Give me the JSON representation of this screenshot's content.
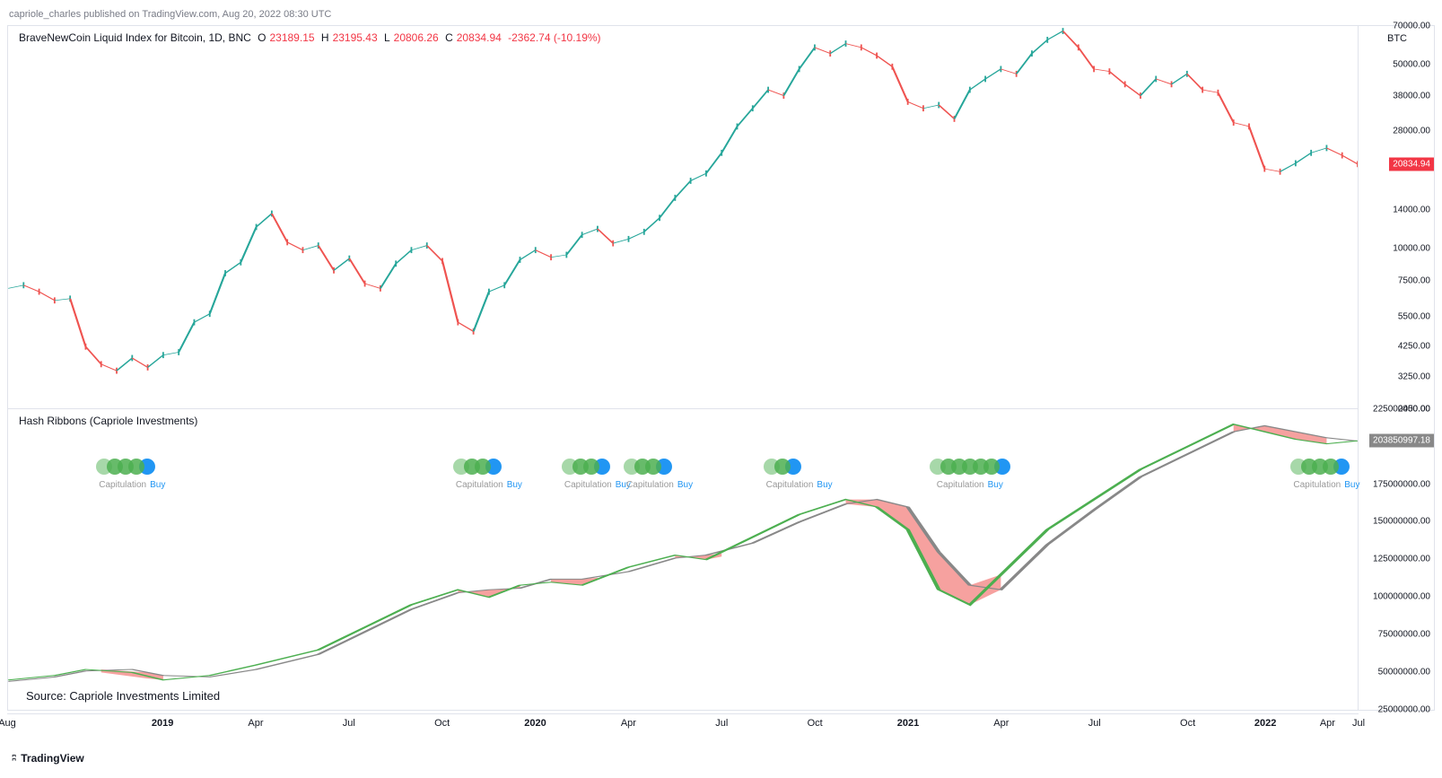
{
  "header": {
    "publish_note": "capriole_charles published on TradingView.com, Aug 20, 2022 08:30 UTC"
  },
  "top_chart": {
    "title_prefix": "BraveNewCoin Liquid Index for Bitcoin, 1D, BNC",
    "ohlc": {
      "O_label": "O",
      "O": "23189.15",
      "H_label": "H",
      "H": "23195.43",
      "L_label": "L",
      "L": "20806.26",
      "C_label": "C",
      "C": "20834.94",
      "change": "-2362.74 (-10.19%)"
    },
    "currency_label": "BTC",
    "scale": "log",
    "ylim": [
      2450,
      70000
    ],
    "yticks": [
      {
        "v": 70000,
        "label": "70000.00"
      },
      {
        "v": 50000,
        "label": "50000.00"
      },
      {
        "v": 38000,
        "label": "38000.00"
      },
      {
        "v": 28000,
        "label": "28000.00"
      },
      {
        "v": 20834.94,
        "label": "20834.94",
        "badge": true,
        "badge_color": "#f23645"
      },
      {
        "v": 14000,
        "label": "14000.00"
      },
      {
        "v": 10000,
        "label": "10000.00"
      },
      {
        "v": 7500,
        "label": "7500.00"
      },
      {
        "v": 5500,
        "label": "5500.00"
      },
      {
        "v": 4250,
        "label": "4250.00"
      },
      {
        "v": 3250,
        "label": "3250.00"
      },
      {
        "v": 2450,
        "label": "2450.00"
      }
    ],
    "price_series": [
      {
        "x": 0,
        "y": 7000
      },
      {
        "x": 1,
        "y": 7200
      },
      {
        "x": 2,
        "y": 6800
      },
      {
        "x": 3,
        "y": 6300
      },
      {
        "x": 4,
        "y": 6400
      },
      {
        "x": 5,
        "y": 4200
      },
      {
        "x": 6,
        "y": 3600
      },
      {
        "x": 7,
        "y": 3400
      },
      {
        "x": 8,
        "y": 3800
      },
      {
        "x": 9,
        "y": 3500
      },
      {
        "x": 10,
        "y": 3900
      },
      {
        "x": 11,
        "y": 4000
      },
      {
        "x": 12,
        "y": 5200
      },
      {
        "x": 13,
        "y": 5600
      },
      {
        "x": 14,
        "y": 8000
      },
      {
        "x": 15,
        "y": 8800
      },
      {
        "x": 16,
        "y": 12000
      },
      {
        "x": 17,
        "y": 13500
      },
      {
        "x": 18,
        "y": 10500
      },
      {
        "x": 19,
        "y": 9800
      },
      {
        "x": 20,
        "y": 10200
      },
      {
        "x": 21,
        "y": 8200
      },
      {
        "x": 22,
        "y": 9100
      },
      {
        "x": 23,
        "y": 7300
      },
      {
        "x": 24,
        "y": 7000
      },
      {
        "x": 25,
        "y": 8700
      },
      {
        "x": 26,
        "y": 9800
      },
      {
        "x": 27,
        "y": 10200
      },
      {
        "x": 28,
        "y": 8900
      },
      {
        "x": 29,
        "y": 5200
      },
      {
        "x": 30,
        "y": 4800
      },
      {
        "x": 31,
        "y": 6800
      },
      {
        "x": 32,
        "y": 7200
      },
      {
        "x": 33,
        "y": 9000
      },
      {
        "x": 34,
        "y": 9800
      },
      {
        "x": 35,
        "y": 9200
      },
      {
        "x": 36,
        "y": 9400
      },
      {
        "x": 37,
        "y": 11200
      },
      {
        "x": 38,
        "y": 11800
      },
      {
        "x": 39,
        "y": 10400
      },
      {
        "x": 40,
        "y": 10800
      },
      {
        "x": 41,
        "y": 11500
      },
      {
        "x": 42,
        "y": 13000
      },
      {
        "x": 43,
        "y": 15500
      },
      {
        "x": 44,
        "y": 18000
      },
      {
        "x": 45,
        "y": 19200
      },
      {
        "x": 46,
        "y": 23000
      },
      {
        "x": 47,
        "y": 29000
      },
      {
        "x": 48,
        "y": 34000
      },
      {
        "x": 49,
        "y": 40000
      },
      {
        "x": 50,
        "y": 38000
      },
      {
        "x": 51,
        "y": 48000
      },
      {
        "x": 52,
        "y": 58000
      },
      {
        "x": 53,
        "y": 55000
      },
      {
        "x": 54,
        "y": 60000
      },
      {
        "x": 55,
        "y": 58000
      },
      {
        "x": 56,
        "y": 54000
      },
      {
        "x": 57,
        "y": 49000
      },
      {
        "x": 58,
        "y": 36000
      },
      {
        "x": 59,
        "y": 34000
      },
      {
        "x": 60,
        "y": 35000
      },
      {
        "x": 61,
        "y": 31000
      },
      {
        "x": 62,
        "y": 40000
      },
      {
        "x": 63,
        "y": 44000
      },
      {
        "x": 64,
        "y": 48000
      },
      {
        "x": 65,
        "y": 46000
      },
      {
        "x": 66,
        "y": 55000
      },
      {
        "x": 67,
        "y": 62000
      },
      {
        "x": 68,
        "y": 67000
      },
      {
        "x": 69,
        "y": 58000
      },
      {
        "x": 70,
        "y": 48000
      },
      {
        "x": 71,
        "y": 47000
      },
      {
        "x": 72,
        "y": 42000
      },
      {
        "x": 73,
        "y": 38000
      },
      {
        "x": 74,
        "y": 44000
      },
      {
        "x": 75,
        "y": 42000
      },
      {
        "x": 76,
        "y": 46000
      },
      {
        "x": 77,
        "y": 40000
      },
      {
        "x": 78,
        "y": 39000
      },
      {
        "x": 79,
        "y": 30000
      },
      {
        "x": 80,
        "y": 29000
      },
      {
        "x": 81,
        "y": 20000
      },
      {
        "x": 82,
        "y": 19500
      },
      {
        "x": 83,
        "y": 21000
      },
      {
        "x": 84,
        "y": 23000
      },
      {
        "x": 85,
        "y": 24000
      },
      {
        "x": 86,
        "y": 22500
      },
      {
        "x": 87,
        "y": 20834
      }
    ],
    "colors": {
      "up": "#26a69a",
      "down": "#ef5350",
      "line": "#555"
    }
  },
  "bottom_chart": {
    "title": "Hash Ribbons (Capriole Investments)",
    "source": "Source: Capriole Investments Limited",
    "ylim": [
      25000000,
      225000000
    ],
    "yticks": [
      {
        "v": 225000000,
        "label": "225000000.00"
      },
      {
        "v": 204057788,
        "label": "204057788.03",
        "badge": true,
        "badge_color": "#4caf50"
      },
      {
        "v": 203850997,
        "label": "203850997.18",
        "badge": true,
        "badge_color": "#888"
      },
      {
        "v": 175000000,
        "label": "175000000.00"
      },
      {
        "v": 150000000,
        "label": "150000000.00"
      },
      {
        "v": 125000000,
        "label": "125000000.00"
      },
      {
        "v": 100000000,
        "label": "100000000.00"
      },
      {
        "v": 75000000,
        "label": "75000000.00"
      },
      {
        "v": 50000000,
        "label": "50000000.00"
      },
      {
        "v": 25000000,
        "label": "25000000.00"
      }
    ],
    "line_green": [
      {
        "x": 0,
        "y": 45000000
      },
      {
        "x": 3,
        "y": 48000000
      },
      {
        "x": 5,
        "y": 52000000
      },
      {
        "x": 8,
        "y": 50000000
      },
      {
        "x": 10,
        "y": 45000000
      },
      {
        "x": 13,
        "y": 48000000
      },
      {
        "x": 16,
        "y": 55000000
      },
      {
        "x": 20,
        "y": 65000000
      },
      {
        "x": 23,
        "y": 80000000
      },
      {
        "x": 26,
        "y": 95000000
      },
      {
        "x": 29,
        "y": 105000000
      },
      {
        "x": 31,
        "y": 100000000
      },
      {
        "x": 33,
        "y": 108000000
      },
      {
        "x": 35,
        "y": 110000000
      },
      {
        "x": 37,
        "y": 108000000
      },
      {
        "x": 40,
        "y": 120000000
      },
      {
        "x": 43,
        "y": 128000000
      },
      {
        "x": 45,
        "y": 125000000
      },
      {
        "x": 48,
        "y": 140000000
      },
      {
        "x": 51,
        "y": 155000000
      },
      {
        "x": 54,
        "y": 165000000
      },
      {
        "x": 56,
        "y": 160000000
      },
      {
        "x": 58,
        "y": 145000000
      },
      {
        "x": 60,
        "y": 105000000
      },
      {
        "x": 62,
        "y": 95000000
      },
      {
        "x": 64,
        "y": 115000000
      },
      {
        "x": 67,
        "y": 145000000
      },
      {
        "x": 70,
        "y": 165000000
      },
      {
        "x": 73,
        "y": 185000000
      },
      {
        "x": 76,
        "y": 200000000
      },
      {
        "x": 79,
        "y": 215000000
      },
      {
        "x": 81,
        "y": 210000000
      },
      {
        "x": 83,
        "y": 205000000
      },
      {
        "x": 85,
        "y": 202000000
      },
      {
        "x": 87,
        "y": 204000000
      }
    ],
    "line_gray": [
      {
        "x": 0,
        "y": 44000000
      },
      {
        "x": 3,
        "y": 47000000
      },
      {
        "x": 5,
        "y": 51000000
      },
      {
        "x": 8,
        "y": 52000000
      },
      {
        "x": 10,
        "y": 48000000
      },
      {
        "x": 13,
        "y": 47000000
      },
      {
        "x": 16,
        "y": 52000000
      },
      {
        "x": 20,
        "y": 62000000
      },
      {
        "x": 23,
        "y": 77000000
      },
      {
        "x": 26,
        "y": 92000000
      },
      {
        "x": 29,
        "y": 103000000
      },
      {
        "x": 31,
        "y": 105000000
      },
      {
        "x": 33,
        "y": 106000000
      },
      {
        "x": 35,
        "y": 112000000
      },
      {
        "x": 37,
        "y": 112000000
      },
      {
        "x": 40,
        "y": 117000000
      },
      {
        "x": 43,
        "y": 126000000
      },
      {
        "x": 45,
        "y": 128000000
      },
      {
        "x": 48,
        "y": 136000000
      },
      {
        "x": 51,
        "y": 150000000
      },
      {
        "x": 54,
        "y": 162000000
      },
      {
        "x": 56,
        "y": 165000000
      },
      {
        "x": 58,
        "y": 160000000
      },
      {
        "x": 60,
        "y": 130000000
      },
      {
        "x": 62,
        "y": 108000000
      },
      {
        "x": 64,
        "y": 105000000
      },
      {
        "x": 67,
        "y": 135000000
      },
      {
        "x": 70,
        "y": 158000000
      },
      {
        "x": 73,
        "y": 180000000
      },
      {
        "x": 76,
        "y": 195000000
      },
      {
        "x": 79,
        "y": 210000000
      },
      {
        "x": 81,
        "y": 214000000
      },
      {
        "x": 83,
        "y": 210000000
      },
      {
        "x": 85,
        "y": 206000000
      },
      {
        "x": 87,
        "y": 203800000
      }
    ],
    "fill_red_regions": [
      [
        {
          "x": 6,
          "t": 52000000,
          "b": 50000000
        },
        {
          "x": 9,
          "t": 50000000,
          "b": 46000000
        },
        {
          "x": 10,
          "t": 48000000,
          "b": 45000000
        }
      ],
      [
        {
          "x": 29,
          "t": 103000000,
          "b": 105000000
        },
        {
          "x": 31,
          "t": 105000000,
          "b": 100000000
        },
        {
          "x": 33,
          "t": 106000000,
          "b": 108000000
        }
      ],
      [
        {
          "x": 35,
          "t": 112000000,
          "b": 110000000
        },
        {
          "x": 37,
          "t": 112000000,
          "b": 108000000
        },
        {
          "x": 38,
          "t": 113000000,
          "b": 112000000
        }
      ],
      [
        {
          "x": 43,
          "t": 126000000,
          "b": 128000000
        },
        {
          "x": 45,
          "t": 128000000,
          "b": 125000000
        },
        {
          "x": 46,
          "t": 129000000,
          "b": 127000000
        }
      ],
      [
        {
          "x": 54,
          "t": 165000000,
          "b": 162000000
        },
        {
          "x": 56,
          "t": 165000000,
          "b": 160000000
        },
        {
          "x": 58,
          "t": 160000000,
          "b": 145000000
        },
        {
          "x": 60,
          "t": 130000000,
          "b": 105000000
        },
        {
          "x": 62,
          "t": 108000000,
          "b": 95000000
        },
        {
          "x": 64,
          "t": 115000000,
          "b": 105000000
        }
      ],
      [
        {
          "x": 79,
          "t": 210000000,
          "b": 215000000
        },
        {
          "x": 81,
          "t": 214000000,
          "b": 210000000
        },
        {
          "x": 83,
          "t": 210000000,
          "b": 205000000
        },
        {
          "x": 85,
          "t": 206000000,
          "b": 202000000
        }
      ]
    ],
    "signals": [
      {
        "x": 8,
        "cap": "Capitulation",
        "buy": "Buy",
        "dots": 4
      },
      {
        "x": 31,
        "cap": "Capitulation",
        "buy": "Buy",
        "dots": 3
      },
      {
        "x": 38,
        "cap": "Capitulation",
        "buy": "Buy",
        "dots": 3
      },
      {
        "x": 42,
        "cap": "Capitulation",
        "buy": "Buy",
        "dots": 3
      },
      {
        "x": 51,
        "cap": "Capitulation",
        "buy": "Buy",
        "dots": 2
      },
      {
        "x": 62,
        "cap": "Capitulation",
        "buy": "Buy",
        "dots": 6,
        "wide": true
      },
      {
        "x": 85,
        "cap": "Capitulation",
        "buy": "Buy",
        "dots": 4
      }
    ],
    "colors": {
      "green_line": "#4caf50",
      "gray_line": "#888",
      "red_fill": "#ef5350"
    }
  },
  "x_axis": {
    "xmax": 87,
    "ticks": [
      {
        "x": 0,
        "label": "Aug"
      },
      {
        "x": 10,
        "label": "2019",
        "bold": true
      },
      {
        "x": 16,
        "label": "Apr"
      },
      {
        "x": 22,
        "label": "Jul"
      },
      {
        "x": 28,
        "label": "Oct"
      },
      {
        "x": 34,
        "label": "2020",
        "bold": true
      },
      {
        "x": 40,
        "label": "Apr"
      },
      {
        "x": 46,
        "label": "Jul"
      },
      {
        "x": 52,
        "label": "Oct"
      },
      {
        "x": 58,
        "label": "2021",
        "bold": true
      },
      {
        "x": 64,
        "label": "Apr"
      },
      {
        "x": 70,
        "label": "Jul"
      },
      {
        "x": 76,
        "label": "Oct"
      },
      {
        "x": 81,
        "label": "2022",
        "bold": true
      },
      {
        "x": 85,
        "label": "Apr"
      },
      {
        "x": 87,
        "label": "Jul"
      }
    ]
  },
  "footer": {
    "logo": "TradingView"
  }
}
